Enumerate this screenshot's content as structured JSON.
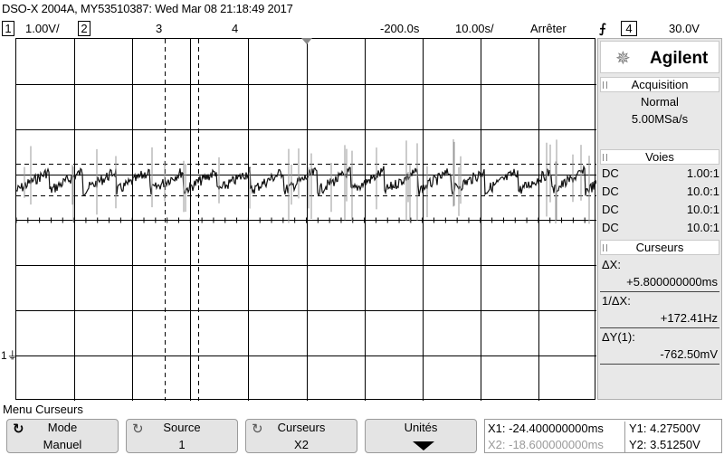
{
  "title": "DSO-X 2004A, MY53510387: Wed Mar 08 21:18:49 2017",
  "topbar": {
    "ch1_num": "1",
    "ch1_scale": "1.00V/",
    "ch2_num": "2",
    "ch3_num": "3",
    "ch4_num": "4",
    "time_delay": "-200.0s",
    "time_scale": "10.00s/",
    "run_state": "Arrêter",
    "trigger_source": "4",
    "trigger_level": "30.0V"
  },
  "panel": {
    "brand": "Agilent",
    "acquisition": {
      "header": "Acquisition",
      "mode": "Normal",
      "rate": "5.00MSa/s"
    },
    "channels": {
      "header": "Voies",
      "rows": [
        {
          "coupling": "DC",
          "probe": "1.00:1"
        },
        {
          "coupling": "DC",
          "probe": "10.0:1"
        },
        {
          "coupling": "DC",
          "probe": "10.0:1"
        },
        {
          "coupling": "DC",
          "probe": "10.0:1"
        }
      ]
    },
    "cursors": {
      "header": "Curseurs",
      "dx_label": "ΔX:",
      "dx_value": "+5.800000000ms",
      "inv_dx_label": "1/ΔX:",
      "inv_dx_value": "+172.41Hz",
      "dy_label": "ΔY(1):",
      "dy_value": "-762.50mV"
    }
  },
  "plot": {
    "ground_marker": "1"
  },
  "menu": {
    "title": "Menu Curseurs",
    "keys": [
      {
        "top": "Mode",
        "bottom": "Manuel"
      },
      {
        "top": "Source",
        "bottom": "1"
      },
      {
        "top": "Curseurs",
        "bottom": "X2"
      },
      {
        "top": "Unités",
        "bottom": ""
      }
    ],
    "readout": {
      "x1": "X1: -24.400000000ms",
      "x2": "X2: -18.600000000ms",
      "y1": "Y1: 4.27500V",
      "y2": "Y2: 3.51250V"
    }
  }
}
